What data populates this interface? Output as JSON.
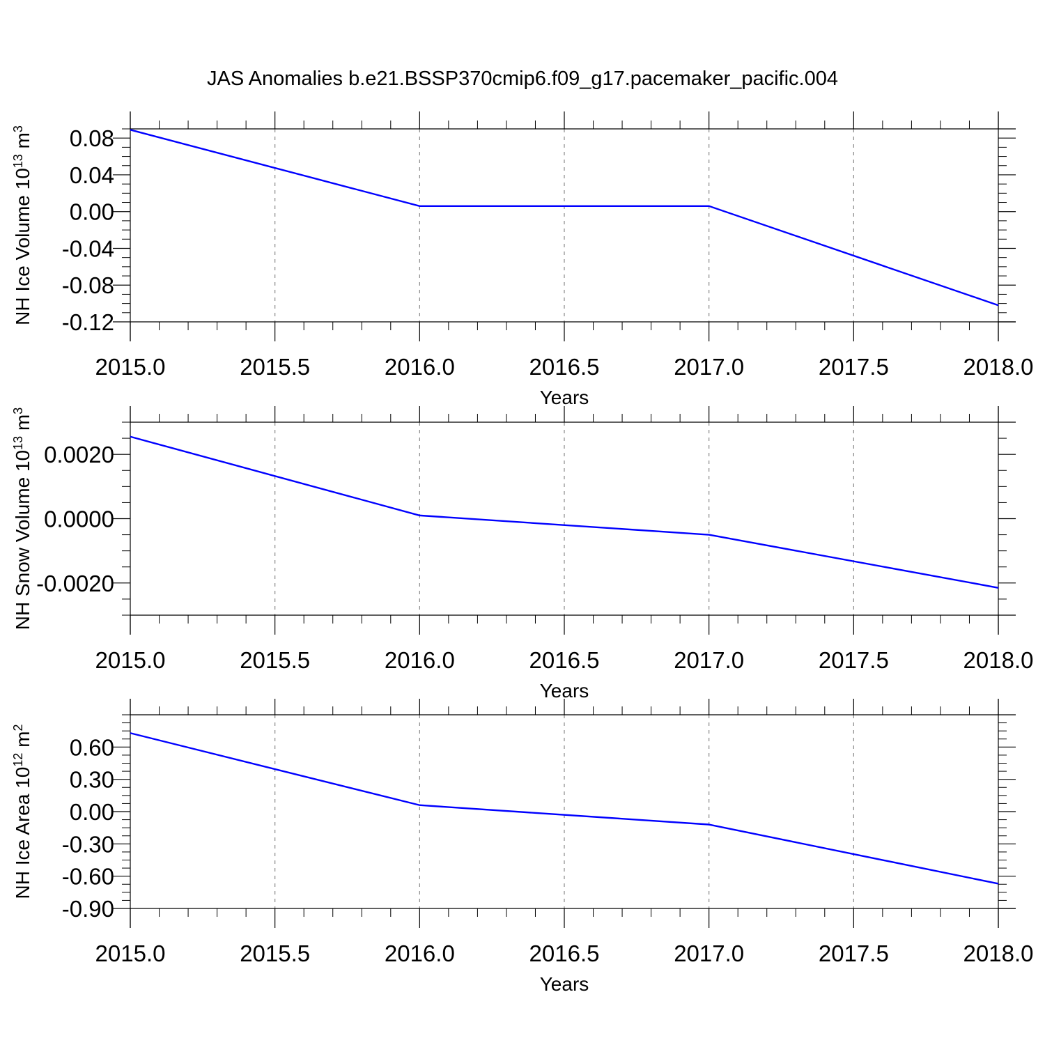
{
  "title": "JAS Anomalies b.e21.BSSP370cmip6.f09_g17.pacemaker_pacific.004",
  "colors": {
    "line": "#0000ff",
    "axis": "#000000",
    "grid": "#888888"
  },
  "chart_data": [
    {
      "type": "line",
      "xlabel": "Years",
      "ylabel": {
        "text": "NH Ice Volume 10",
        "exp": "13",
        "unit": " m",
        "unit_exp": "3"
      },
      "x": [
        2015,
        2016,
        2017,
        2018
      ],
      "series": [
        {
          "values": [
            0.089,
            0.006,
            0.006,
            -0.102
          ]
        }
      ],
      "xlim": [
        2015,
        2018
      ],
      "ylim": [
        -0.12,
        0.09
      ],
      "xticks": [
        "2015.0",
        "2015.5",
        "2016.0",
        "2016.5",
        "2017.0",
        "2017.5",
        "2018.0"
      ],
      "yticks": [
        {
          "value": 0.08,
          "label": "0.08"
        },
        {
          "value": 0.04,
          "label": "0.04"
        },
        {
          "value": 0.0,
          "label": "0.00"
        },
        {
          "value": -0.04,
          "label": "-0.04"
        },
        {
          "value": -0.08,
          "label": "-0.08"
        },
        {
          "value": -0.12,
          "label": "-0.12"
        }
      ],
      "grid": "vertical dashed"
    },
    {
      "type": "line",
      "xlabel": "Years",
      "ylabel": {
        "text": "NH Snow Volume 10",
        "exp": "13",
        "unit": " m",
        "unit_exp": "3"
      },
      "x": [
        2015,
        2016,
        2017,
        2018
      ],
      "series": [
        {
          "values": [
            0.00255,
            0.0001,
            -0.0005,
            -0.00215
          ]
        }
      ],
      "xlim": [
        2015,
        2018
      ],
      "ylim": [
        -0.003,
        0.003
      ],
      "xticks": [
        "2015.0",
        "2015.5",
        "2016.0",
        "2016.5",
        "2017.0",
        "2017.5",
        "2018.0"
      ],
      "yticks": [
        {
          "value": 0.002,
          "label": "0.0020"
        },
        {
          "value": 0.0,
          "label": "0.0000"
        },
        {
          "value": -0.002,
          "label": "-0.0020"
        }
      ],
      "grid": "vertical dashed"
    },
    {
      "type": "line",
      "xlabel": "Years",
      "ylabel": {
        "text": "NH Ice Area 10",
        "exp": "12",
        "unit": " m",
        "unit_exp": "2"
      },
      "x": [
        2015,
        2016,
        2017,
        2018
      ],
      "series": [
        {
          "values": [
            0.73,
            0.06,
            -0.12,
            -0.67
          ]
        }
      ],
      "xlim": [
        2015,
        2018
      ],
      "ylim": [
        -0.9,
        0.9
      ],
      "xticks": [
        "2015.0",
        "2015.5",
        "2016.0",
        "2016.5",
        "2017.0",
        "2017.5",
        "2018.0"
      ],
      "yticks": [
        {
          "value": 0.6,
          "label": "0.60"
        },
        {
          "value": 0.3,
          "label": "0.30"
        },
        {
          "value": 0.0,
          "label": "0.00"
        },
        {
          "value": -0.3,
          "label": "-0.30"
        },
        {
          "value": -0.6,
          "label": "-0.60"
        },
        {
          "value": -0.9,
          "label": "-0.90"
        }
      ],
      "grid": "vertical dashed"
    }
  ]
}
